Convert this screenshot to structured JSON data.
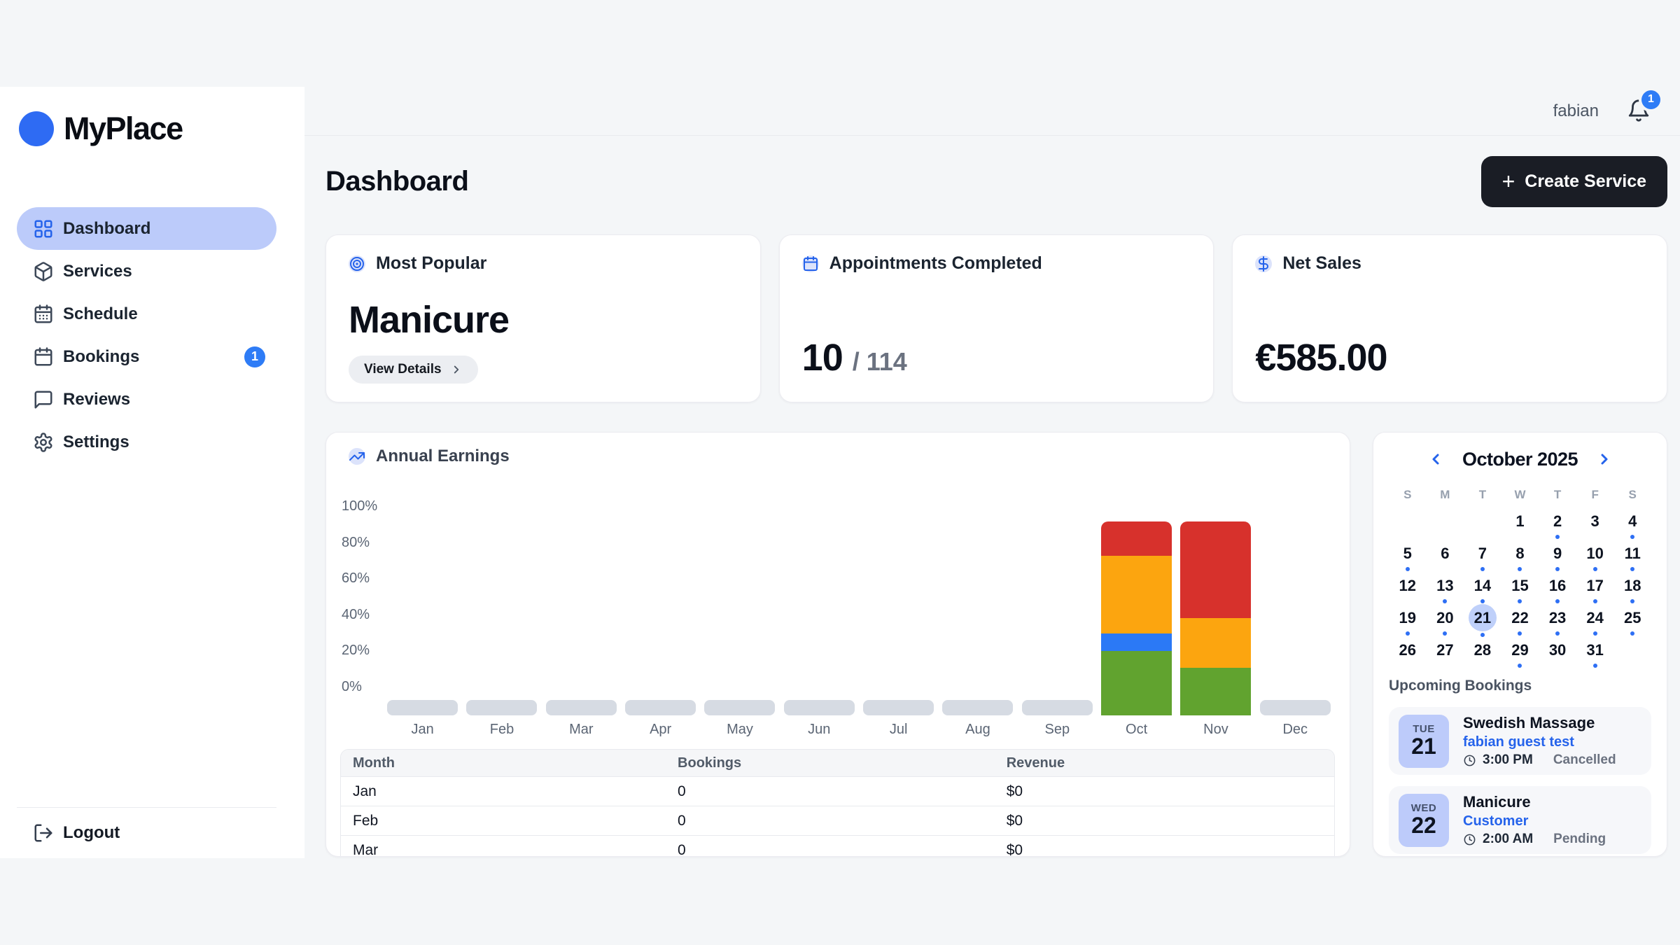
{
  "app": {
    "brand": "MyPlace"
  },
  "header": {
    "user": "fabian",
    "notification_count": "1"
  },
  "sidebar": {
    "items": [
      {
        "label": "Dashboard",
        "icon": "dashboard-grid-icon",
        "active": true
      },
      {
        "label": "Services",
        "icon": "services-box-icon"
      },
      {
        "label": "Schedule",
        "icon": "schedule-calendar-icon"
      },
      {
        "label": "Bookings",
        "icon": "bookings-calendar-icon",
        "badge": "1"
      },
      {
        "label": "Reviews",
        "icon": "reviews-chat-icon"
      },
      {
        "label": "Settings",
        "icon": "settings-gear-icon"
      }
    ],
    "logout_label": "Logout"
  },
  "page": {
    "title": "Dashboard",
    "create_button_label": "Create Service"
  },
  "stats": [
    {
      "icon": "target-icon",
      "label": "Most Popular",
      "value": "Manicure",
      "action_label": "View Details"
    },
    {
      "icon": "calendar-icon",
      "label": "Appointments Completed",
      "value": "10",
      "total": "/ 114"
    },
    {
      "icon": "dollar-icon",
      "label": "Net Sales",
      "value": "€585.00"
    }
  ],
  "chart_data": {
    "type": "bar",
    "stacked": true,
    "title": "Annual Earnings",
    "y_ticks": [
      "100%",
      "80%",
      "60%",
      "40%",
      "20%",
      "0%"
    ],
    "ylim": [
      0,
      100
    ],
    "categories": [
      "Jan",
      "Feb",
      "Mar",
      "Apr",
      "May",
      "Jun",
      "Jul",
      "Aug",
      "Sep",
      "Oct",
      "Nov",
      "Dec"
    ],
    "series": [
      {
        "name": "green-segment",
        "color": "#61a32f",
        "values": [
          0,
          0,
          0,
          0,
          0,
          0,
          0,
          0,
          0,
          30,
          22,
          0
        ]
      },
      {
        "name": "blue-segment",
        "color": "#2b79f6",
        "values": [
          0,
          0,
          0,
          0,
          0,
          0,
          0,
          0,
          0,
          8,
          0,
          0
        ]
      },
      {
        "name": "orange-segment",
        "color": "#fca50f",
        "values": [
          0,
          0,
          0,
          0,
          0,
          0,
          0,
          0,
          0,
          36,
          23,
          0
        ]
      },
      {
        "name": "red-segment",
        "color": "#d7312c",
        "values": [
          0,
          0,
          0,
          0,
          0,
          0,
          0,
          0,
          0,
          16,
          45,
          0
        ]
      }
    ],
    "empty_bar_color": "#d6dbe3",
    "legend": false
  },
  "table": {
    "headers": [
      "Month",
      "Bookings",
      "Revenue"
    ],
    "rows": [
      [
        "Jan",
        "0",
        "$0"
      ],
      [
        "Feb",
        "0",
        "$0"
      ],
      [
        "Mar",
        "0",
        "$0"
      ]
    ]
  },
  "calendar": {
    "title": "October 2025",
    "day_headers": [
      "S",
      "M",
      "T",
      "W",
      "T",
      "F",
      "S"
    ],
    "selected_day": 21,
    "weeks": [
      [
        null,
        null,
        null,
        {
          "d": 1
        },
        {
          "d": 2,
          "dot": true
        },
        {
          "d": 3
        },
        {
          "d": 4,
          "dot": true
        }
      ],
      [
        {
          "d": 5,
          "dot": true
        },
        {
          "d": 6
        },
        {
          "d": 7,
          "dot": true
        },
        {
          "d": 8,
          "dot": true
        },
        {
          "d": 9,
          "dot": true
        },
        {
          "d": 10,
          "dot": true
        },
        {
          "d": 11,
          "dot": true
        }
      ],
      [
        {
          "d": 12
        },
        {
          "d": 13,
          "dot": true
        },
        {
          "d": 14,
          "dot": true
        },
        {
          "d": 15,
          "dot": true
        },
        {
          "d": 16,
          "dot": true
        },
        {
          "d": 17,
          "dot": true
        },
        {
          "d": 18,
          "dot": true
        }
      ],
      [
        {
          "d": 19,
          "dot": true
        },
        {
          "d": 20,
          "dot": true
        },
        {
          "d": 21,
          "dot": true,
          "selected": true
        },
        {
          "d": 22,
          "dot": true
        },
        {
          "d": 23,
          "dot": true
        },
        {
          "d": 24,
          "dot": true
        },
        {
          "d": 25,
          "dot": true
        }
      ],
      [
        {
          "d": 26
        },
        {
          "d": 27
        },
        {
          "d": 28
        },
        {
          "d": 29,
          "dot": true
        },
        {
          "d": 30
        },
        {
          "d": 31,
          "dot": true
        },
        null
      ]
    ]
  },
  "bookings": {
    "title": "Upcoming Bookings",
    "items": [
      {
        "day": "TUE",
        "date": "21",
        "service": "Swedish Massage",
        "customer": "fabian guest test",
        "time": "3:00 PM",
        "status": "Cancelled"
      },
      {
        "day": "WED",
        "date": "22",
        "service": "Manicure",
        "customer": "Customer",
        "time": "2:00 AM",
        "status": "Pending"
      }
    ]
  },
  "colors": {
    "accent": "#2563eb",
    "active_pill": "#bccbfa",
    "icon_chip_bg": "#dce3fb",
    "badge": "#2e7cf6",
    "bar_red": "#d7312c",
    "bar_orange": "#fca50f",
    "bar_green": "#61a32f",
    "bar_blue": "#2b79f6",
    "empty_bar": "#d6dbe3"
  }
}
